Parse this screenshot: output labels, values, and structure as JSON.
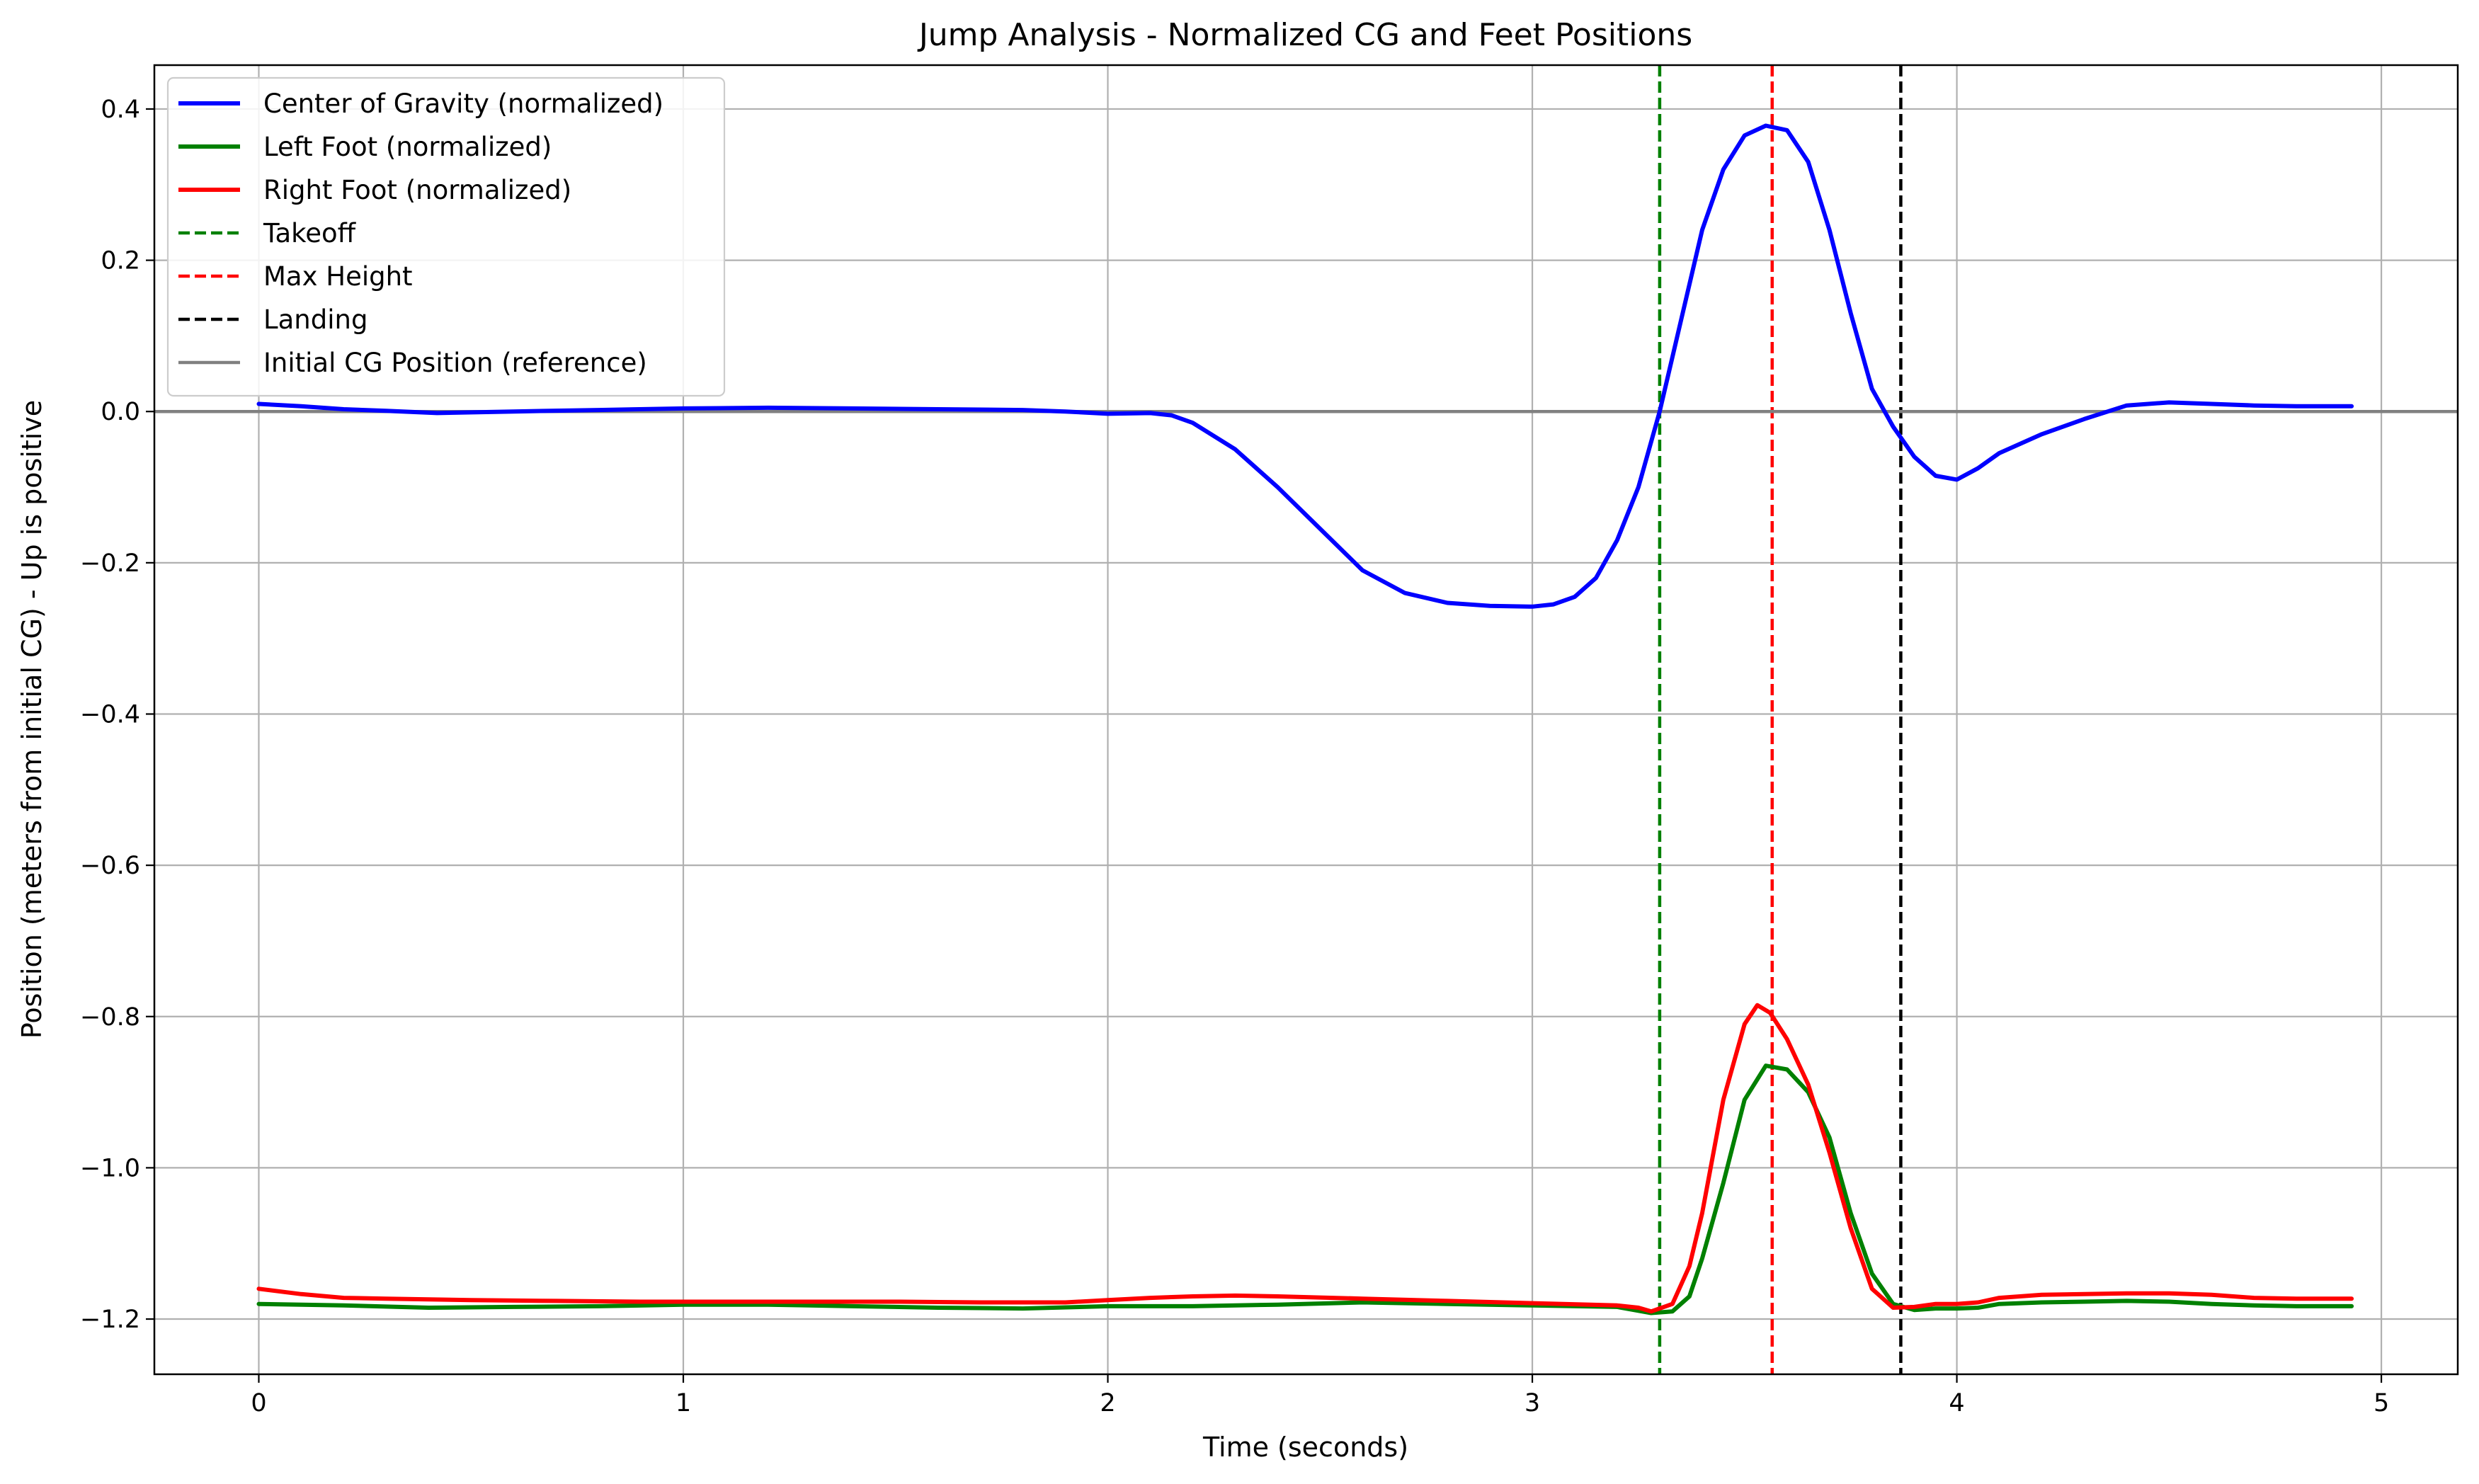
{
  "chart_data": {
    "type": "line",
    "title": "Jump Analysis - Normalized CG and Feet Positions",
    "xlabel": "Time (seconds)",
    "ylabel": "Position (meters from initial CG) - Up is positive",
    "xlim": [
      -0.246,
      5.18
    ],
    "ylim": [
      -1.273,
      0.458
    ],
    "xticks": [
      0,
      1,
      2,
      3,
      4,
      5
    ],
    "xtick_labels": [
      "0",
      "1",
      "2",
      "3",
      "4",
      "5"
    ],
    "yticks": [
      0.4,
      0.2,
      0.0,
      -0.2,
      -0.4,
      -0.6,
      -0.8,
      -1.0,
      -1.2
    ],
    "ytick_labels": [
      "0.4",
      "0.2",
      "0.0",
      "−0.2",
      "−0.4",
      "−0.6",
      "−0.8",
      "−1.0",
      "−1.2"
    ],
    "grid": true,
    "legend_position": "top-left",
    "series": [
      {
        "name": "Center of Gravity (normalized)",
        "color": "#0000ff",
        "style": "solid",
        "x": [
          0,
          0.1,
          0.2,
          0.3,
          0.42,
          0.6,
          0.8,
          1.0,
          1.2,
          1.4,
          1.6,
          1.8,
          1.9,
          2.0,
          2.1,
          2.15,
          2.2,
          2.3,
          2.4,
          2.5,
          2.6,
          2.7,
          2.8,
          2.9,
          3.0,
          3.05,
          3.1,
          3.15,
          3.2,
          3.25,
          3.3,
          3.35,
          3.4,
          3.45,
          3.5,
          3.55,
          3.6,
          3.65,
          3.7,
          3.75,
          3.8,
          3.85,
          3.9,
          3.95,
          4.0,
          4.05,
          4.1,
          4.2,
          4.3,
          4.4,
          4.5,
          4.6,
          4.7,
          4.8,
          4.93
        ],
        "y": [
          0.01,
          0.007,
          0.003,
          0.001,
          -0.002,
          0.0,
          0.002,
          0.004,
          0.005,
          0.004,
          0.003,
          0.002,
          0.0,
          -0.003,
          -0.002,
          -0.005,
          -0.015,
          -0.05,
          -0.1,
          -0.155,
          -0.21,
          -0.24,
          -0.253,
          -0.257,
          -0.258,
          -0.255,
          -0.245,
          -0.22,
          -0.17,
          -0.1,
          0.0,
          0.12,
          0.24,
          0.32,
          0.365,
          0.378,
          0.372,
          0.33,
          0.24,
          0.13,
          0.03,
          -0.02,
          -0.06,
          -0.085,
          -0.09,
          -0.075,
          -0.055,
          -0.03,
          -0.01,
          0.008,
          0.012,
          0.01,
          0.008,
          0.007,
          0.007
        ]
      },
      {
        "name": "Left Foot (normalized)",
        "color": "#008000",
        "style": "solid",
        "x": [
          0,
          0.2,
          0.4,
          0.6,
          0.8,
          1.0,
          1.2,
          1.4,
          1.6,
          1.8,
          2.0,
          2.2,
          2.4,
          2.6,
          2.8,
          3.0,
          3.2,
          3.28,
          3.33,
          3.37,
          3.4,
          3.45,
          3.5,
          3.55,
          3.6,
          3.65,
          3.7,
          3.75,
          3.8,
          3.85,
          3.9,
          3.95,
          4.0,
          4.05,
          4.1,
          4.2,
          4.3,
          4.4,
          4.5,
          4.6,
          4.7,
          4.8,
          4.93
        ],
        "y": [
          -1.18,
          -1.182,
          -1.185,
          -1.184,
          -1.183,
          -1.181,
          -1.181,
          -1.183,
          -1.185,
          -1.186,
          -1.183,
          -1.183,
          -1.181,
          -1.178,
          -1.18,
          -1.182,
          -1.184,
          -1.192,
          -1.19,
          -1.17,
          -1.12,
          -1.02,
          -0.91,
          -0.865,
          -0.87,
          -0.9,
          -0.96,
          -1.06,
          -1.14,
          -1.18,
          -1.188,
          -1.186,
          -1.186,
          -1.185,
          -1.18,
          -1.178,
          -1.177,
          -1.176,
          -1.177,
          -1.18,
          -1.182,
          -1.183,
          -1.183
        ]
      },
      {
        "name": "Right Foot (normalized)",
        "color": "#ff0000",
        "style": "solid",
        "x": [
          0,
          0.1,
          0.2,
          0.3,
          0.5,
          0.7,
          0.9,
          1.1,
          1.3,
          1.5,
          1.7,
          1.9,
          2.0,
          2.1,
          2.2,
          2.3,
          2.4,
          2.6,
          2.8,
          3.0,
          3.2,
          3.25,
          3.28,
          3.33,
          3.37,
          3.4,
          3.45,
          3.5,
          3.53,
          3.56,
          3.6,
          3.65,
          3.7,
          3.75,
          3.8,
          3.85,
          3.9,
          3.95,
          4.0,
          4.05,
          4.1,
          4.2,
          4.3,
          4.4,
          4.5,
          4.6,
          4.7,
          4.8,
          4.93
        ],
        "y": [
          -1.16,
          -1.167,
          -1.172,
          -1.173,
          -1.175,
          -1.176,
          -1.177,
          -1.177,
          -1.177,
          -1.177,
          -1.178,
          -1.178,
          -1.175,
          -1.172,
          -1.17,
          -1.169,
          -1.17,
          -1.173,
          -1.176,
          -1.179,
          -1.182,
          -1.185,
          -1.19,
          -1.18,
          -1.13,
          -1.06,
          -0.91,
          -0.81,
          -0.785,
          -0.795,
          -0.83,
          -0.89,
          -0.98,
          -1.08,
          -1.16,
          -1.185,
          -1.184,
          -1.18,
          -1.18,
          -1.178,
          -1.172,
          -1.168,
          -1.167,
          -1.166,
          -1.166,
          -1.168,
          -1.172,
          -1.173,
          -1.173
        ]
      },
      {
        "name": "Takeoff",
        "color": "#008000",
        "style": "dashed",
        "x": 3.3
      },
      {
        "name": "Max Height",
        "color": "#ff0000",
        "style": "dashed",
        "x": 3.565
      },
      {
        "name": "Landing",
        "color": "#000000",
        "style": "dashed",
        "x": 3.868
      },
      {
        "name": "Initial CG Position (reference)",
        "color": "#808080",
        "style": "solid",
        "y": 0.0
      }
    ]
  }
}
